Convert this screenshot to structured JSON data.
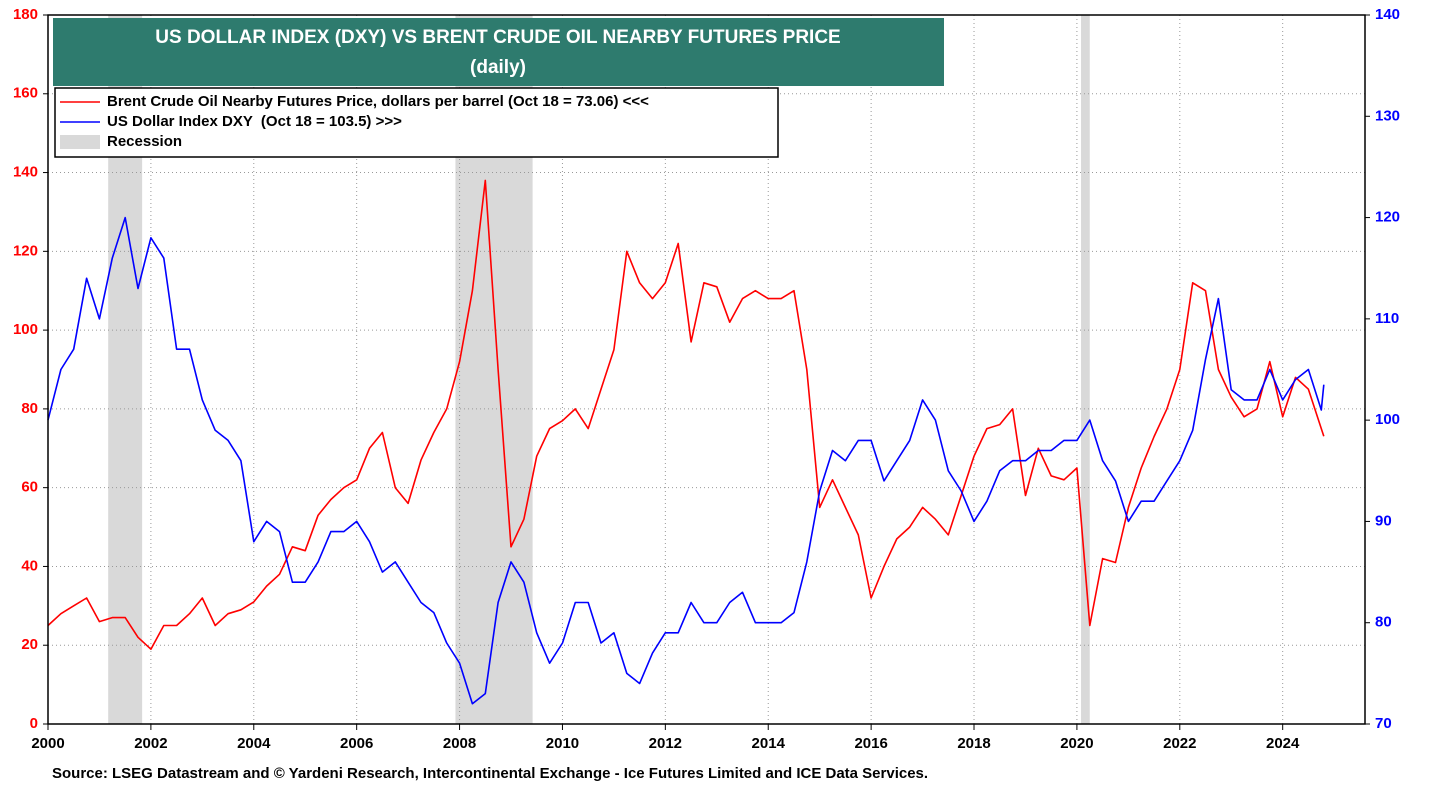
{
  "chart_data": {
    "type": "line",
    "title": "US DOLLAR INDEX (DXY) VS BRENT CRUDE OIL NEARBY FUTURES PRICE",
    "subtitle": "(daily)",
    "source": "Source: LSEG Datastream and © Yardeni Research, Intercontinental Exchange - Ice Futures Limited and ICE Data Services.",
    "x": [
      2000,
      2000.25,
      2000.5,
      2000.75,
      2001,
      2001.25,
      2001.5,
      2001.75,
      2002,
      2002.25,
      2002.5,
      2002.75,
      2003,
      2003.25,
      2003.5,
      2003.75,
      2004,
      2004.25,
      2004.5,
      2004.75,
      2005,
      2005.25,
      2005.5,
      2005.75,
      2006,
      2006.25,
      2006.5,
      2006.75,
      2007,
      2007.25,
      2007.5,
      2007.75,
      2008,
      2008.25,
      2008.5,
      2008.75,
      2009,
      2009.25,
      2009.5,
      2009.75,
      2010,
      2010.25,
      2010.5,
      2010.75,
      2011,
      2011.25,
      2011.5,
      2011.75,
      2012,
      2012.25,
      2012.5,
      2012.75,
      2013,
      2013.25,
      2013.5,
      2013.75,
      2014,
      2014.25,
      2014.5,
      2014.75,
      2015,
      2015.25,
      2015.5,
      2015.75,
      2016,
      2016.25,
      2016.5,
      2016.75,
      2017,
      2017.25,
      2017.5,
      2017.75,
      2018,
      2018.25,
      2018.5,
      2018.75,
      2019,
      2019.25,
      2019.5,
      2019.75,
      2020,
      2020.25,
      2020.5,
      2020.75,
      2021,
      2021.25,
      2021.5,
      2021.75,
      2022,
      2022.25,
      2022.5,
      2022.75,
      2023,
      2023.25,
      2023.5,
      2023.75,
      2024,
      2024.25,
      2024.5,
      2024.75,
      2024.8
    ],
    "series": [
      {
        "name": "Brent Crude Oil Nearby Futures Price, dollars per barrel (Oct 18 = 73.06) <<<",
        "color": "#ff0000",
        "axis": "y",
        "values": [
          25,
          28,
          30,
          32,
          26,
          27,
          27,
          22,
          19,
          25,
          25,
          28,
          32,
          25,
          28,
          29,
          31,
          35,
          38,
          45,
          44,
          53,
          57,
          60,
          62,
          70,
          74,
          60,
          56,
          67,
          74,
          80,
          92,
          110,
          138,
          90,
          45,
          52,
          68,
          75,
          77,
          80,
          75,
          85,
          95,
          120,
          112,
          108,
          112,
          122,
          97,
          112,
          111,
          102,
          108,
          110,
          108,
          108,
          110,
          90,
          55,
          62,
          55,
          48,
          32,
          40,
          47,
          50,
          55,
          52,
          48,
          58,
          68,
          75,
          76,
          80,
          58,
          70,
          63,
          62,
          65,
          25,
          42,
          41,
          55,
          65,
          73,
          80,
          90,
          112,
          110,
          90,
          83,
          78,
          80,
          92,
          78,
          88,
          85,
          75,
          73.06
        ]
      },
      {
        "name": "US Dollar Index DXY  (Oct 18 = 103.5) >>>",
        "color": "#0000ff",
        "axis": "y2",
        "values": [
          100,
          105,
          107,
          114,
          110,
          116,
          120,
          113,
          118,
          116,
          107,
          107,
          102,
          99,
          98,
          96,
          88,
          90,
          89,
          84,
          84,
          86,
          89,
          89,
          90,
          88,
          85,
          86,
          84,
          82,
          81,
          78,
          76,
          72,
          73,
          82,
          86,
          84,
          79,
          76,
          78,
          82,
          82,
          78,
          79,
          75,
          74,
          77,
          79,
          79,
          82,
          80,
          80,
          82,
          83,
          80,
          80,
          80,
          81,
          86,
          93,
          97,
          96,
          98,
          98,
          94,
          96,
          98,
          102,
          100,
          95,
          93,
          90,
          92,
          95,
          96,
          96,
          97,
          97,
          98,
          98,
          100,
          96,
          94,
          90,
          92,
          92,
          94,
          96,
          99,
          106,
          112,
          103,
          102,
          102,
          105,
          102,
          104,
          105,
          101,
          103.5
        ]
      }
    ],
    "recession_label": "Recession",
    "recession_color": "#d9d9d9",
    "recessions": [
      [
        2001.17,
        2001.83
      ],
      [
        2007.92,
        2009.42
      ],
      [
        2020.08,
        2020.25
      ]
    ],
    "xlim": [
      2000,
      2025.6
    ],
    "xticks": [
      2000,
      2002,
      2004,
      2006,
      2008,
      2010,
      2012,
      2014,
      2016,
      2018,
      2020,
      2022,
      2024
    ],
    "ylim": [
      0,
      180
    ],
    "yticks": [
      0,
      20,
      40,
      60,
      80,
      100,
      120,
      140,
      160,
      180
    ],
    "y2lim": [
      70,
      140
    ],
    "y2ticks": [
      70,
      80,
      90,
      100,
      110,
      120,
      130,
      140
    ],
    "grid": true
  }
}
